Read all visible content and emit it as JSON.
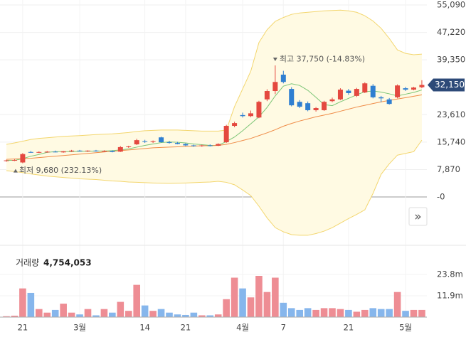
{
  "chart_data": {
    "type": "candlestick",
    "categories": [
      null,
      null,
      "21",
      null,
      null,
      null,
      null,
      null,
      null,
      "3월",
      null,
      null,
      null,
      null,
      null,
      null,
      null,
      "14",
      null,
      null,
      null,
      null,
      "21",
      null,
      null,
      null,
      null,
      null,
      null,
      "4월",
      null,
      null,
      null,
      null,
      "7",
      null,
      null,
      null,
      null,
      null,
      null,
      null,
      "21",
      null,
      null,
      null,
      null,
      null,
      null,
      "5월",
      null,
      null
    ],
    "open": [
      10300,
      10500,
      9900,
      12900,
      12800,
      12900,
      13000,
      12800,
      13100,
      13300,
      13100,
      13300,
      13100,
      13200,
      13000,
      14300,
      15100,
      16000,
      15800,
      17100,
      15700,
      15500,
      15200,
      14800,
      14600,
      14800,
      14700,
      15700,
      20400,
      23500,
      23200,
      22800,
      28000,
      30400,
      35100,
      31000,
      27300,
      26900,
      24900,
      24900,
      27500,
      28000,
      30500,
      29000,
      30000,
      31900,
      28600,
      28000,
      28600,
      31200,
      30800,
      31500
    ],
    "high": [
      10700,
      10800,
      12600,
      13200,
      13100,
      13200,
      13300,
      13200,
      13500,
      13500,
      13400,
      13500,
      13400,
      13400,
      14600,
      14700,
      16700,
      16400,
      16200,
      17300,
      16100,
      15800,
      15400,
      15000,
      15000,
      15100,
      15400,
      20700,
      21600,
      24200,
      24800,
      27600,
      30900,
      37750,
      36200,
      31500,
      27800,
      27400,
      25800,
      27600,
      28500,
      31200,
      31000,
      31300,
      32900,
      32400,
      29000,
      28400,
      32300,
      31600,
      31600,
      33500
    ],
    "low": [
      10100,
      10300,
      9680,
      12700,
      12600,
      12700,
      12800,
      12700,
      12900,
      13000,
      12900,
      13000,
      12900,
      12800,
      12900,
      14100,
      14900,
      15500,
      15500,
      15600,
      15300,
      15100,
      14600,
      14400,
      14400,
      14500,
      14600,
      15500,
      20000,
      22800,
      22900,
      22600,
      27500,
      29500,
      32600,
      26000,
      25500,
      24600,
      24500,
      24700,
      27200,
      27800,
      29300,
      28700,
      29800,
      28300,
      27200,
      26500,
      28300,
      30400,
      30600,
      31200
    ],
    "close": [
      10500,
      10600,
      12300,
      12800,
      12900,
      13000,
      12800,
      13100,
      13300,
      13100,
      13300,
      13100,
      13200,
      12900,
      14300,
      14500,
      16300,
      15800,
      16000,
      15700,
      15500,
      15200,
      14800,
      14600,
      14800,
      14700,
      15200,
      20400,
      21200,
      23200,
      24000,
      27300,
      30400,
      33000,
      33000,
      26300,
      25900,
      24900,
      25500,
      27300,
      28000,
      30800,
      29800,
      31000,
      32600,
      28600,
      28300,
      26700,
      32000,
      30800,
      31400,
      32150
    ],
    "up_color": "#e4483f",
    "down_color": "#2f7fd1",
    "ylim": [
      -12850,
      56520
    ],
    "yticks": [
      {
        "value": 0,
        "label": "-0"
      },
      {
        "value": 7870,
        "label": "7,870"
      },
      {
        "value": 15740,
        "label": "15,740"
      },
      {
        "value": 23610,
        "label": "23,610"
      },
      {
        "value": 39350,
        "label": "39,350"
      },
      {
        "value": 47220,
        "label": "47,220"
      },
      {
        "value": 55090,
        "label": "55,090"
      }
    ],
    "band": {
      "color": "#f3d66e",
      "fill": "#fffae3",
      "upper": [
        15100,
        15500,
        16000,
        16500,
        16800,
        17000,
        17200,
        17400,
        17500,
        17600,
        17750,
        17900,
        18000,
        18100,
        18300,
        18500,
        18800,
        19000,
        19100,
        19200,
        19200,
        19200,
        19100,
        19000,
        18900,
        18900,
        18900,
        19200,
        25900,
        31000,
        36100,
        44300,
        48000,
        50400,
        51500,
        52400,
        52800,
        53000,
        53200,
        53400,
        53500,
        53600,
        53400,
        53000,
        52000,
        50500,
        48400,
        45500,
        42200,
        41200,
        40800,
        41000
      ],
      "lower": [
        7550,
        7300,
        7000,
        6600,
        6300,
        6000,
        5800,
        5600,
        5400,
        5200,
        5100,
        5000,
        4800,
        4600,
        4500,
        4300,
        4200,
        4100,
        4000,
        3950,
        3900,
        3950,
        4000,
        4100,
        4200,
        4300,
        4500,
        4200,
        3500,
        2000,
        400,
        -2650,
        -6000,
        -8800,
        -10000,
        -10800,
        -11000,
        -11000,
        -10500,
        -9800,
        -8800,
        -7500,
        -6200,
        -5000,
        -3700,
        1000,
        6500,
        9500,
        12000,
        12500,
        13000,
        16300
      ]
    },
    "overlays": [
      {
        "color": "#7cc576",
        "values": [
          10500,
          10500,
          11000,
          11700,
          12200,
          12800,
          13000,
          13000,
          13000,
          13100,
          13100,
          13200,
          13200,
          13300,
          13500,
          13800,
          14300,
          14800,
          15200,
          15600,
          15800,
          15700,
          15500,
          15200,
          15000,
          14800,
          14800,
          15900,
          17200,
          19000,
          21000,
          23000,
          25700,
          29000,
          31800,
          32500,
          32000,
          30600,
          28600,
          26500,
          26200,
          27300,
          28300,
          29300,
          30200,
          30400,
          30100,
          29600,
          29000,
          29500,
          30000,
          30700
        ]
      },
      {
        "color": "#ef8c48",
        "values": [
          10800,
          10900,
          11000,
          11100,
          11300,
          11500,
          11700,
          11900,
          12100,
          12300,
          12500,
          12700,
          12900,
          13100,
          13300,
          13500,
          13700,
          13900,
          14100,
          14200,
          14300,
          14400,
          14500,
          14600,
          14700,
          14700,
          14800,
          15100,
          15600,
          16200,
          16800,
          17600,
          18400,
          19300,
          20300,
          21100,
          21800,
          22400,
          23000,
          23500,
          24000,
          24600,
          25200,
          25800,
          26300,
          26800,
          27300,
          27700,
          28100,
          28500,
          28900,
          29300
        ]
      }
    ],
    "last_price": {
      "value": 32150,
      "label": "32,150"
    },
    "high_note": "최고 37,750 (-14.83%)",
    "low_note": "최저 9,680 (232.13%)",
    "nav_button": "»",
    "volume": {
      "title": "거래량",
      "total": "4,754,053",
      "up_color": "#ee8d94",
      "down_color": "#86b6ec",
      "values": [
        500000,
        800000,
        16000000,
        13500000,
        4500000,
        2500000,
        4000000,
        7500000,
        2500000,
        1500000,
        4500000,
        1000000,
        4500000,
        2500000,
        8500000,
        3500000,
        18000000,
        6500000,
        3500000,
        4500000,
        2500000,
        1500000,
        1200000,
        2500000,
        1000000,
        1000000,
        1500000,
        10000000,
        22000000,
        16000000,
        11000000,
        23000000,
        14000000,
        22000000,
        8000000,
        5000000,
        4000000,
        5000000,
        4000000,
        5000000,
        5000000,
        4500000,
        4000000,
        3000000,
        4000000,
        5000000,
        4500000,
        4500000,
        14000000,
        3500000,
        4000000,
        4000000
      ],
      "ylim": [
        0,
        34100000
      ],
      "yticks": [
        {
          "value": 11900000,
          "label": "11.9m"
        },
        {
          "value": 23800000,
          "label": "23.8m"
        }
      ]
    }
  }
}
